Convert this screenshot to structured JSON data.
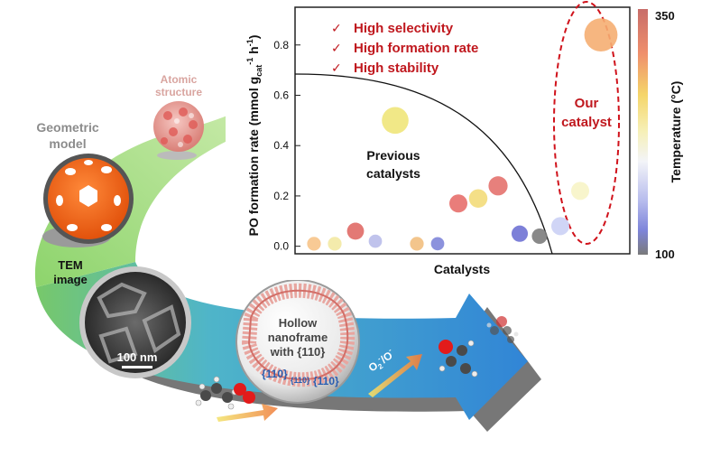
{
  "labels": {
    "atomic": [
      "Atomic",
      "structure"
    ],
    "geometric": [
      "Geometric",
      "model"
    ],
    "tem": [
      "TEM",
      "image"
    ],
    "scale": "100 nm",
    "hollow": [
      "Hollow",
      "nanoframe",
      "with {110}"
    ],
    "facet_a": "{110}",
    "facet_b": "{110}",
    "facet_c": "{110}",
    "oxygen": "O",
    "oxygen_sub": "2",
    "oxygen_sup": "-",
    "oxygen_sep": "/O",
    "oxygen_sup2": "-"
  },
  "chart_data": {
    "type": "scatter",
    "xlabel": "Catalysts",
    "ylabel": "PO formation rate (mmol g",
    "ylabel_sub": "cat",
    "ylabel_unit": " h",
    "ylabel_sup": "-1",
    "ylabel_sup_g": "-1",
    "ylabel_close": ")",
    "ylim": [
      -0.03,
      0.95
    ],
    "yticks": [
      "0.0",
      "0.2",
      "0.4",
      "0.6",
      "0.8"
    ],
    "ytick_values": [
      0.0,
      0.2,
      0.4,
      0.6,
      0.8
    ],
    "colorbar": {
      "label": "Temperature (°C)",
      "min_label": "350",
      "max_label": "100",
      "min": 100,
      "max": 350
    },
    "checklist": [
      "High selectivity",
      "High formation rate",
      "High stability"
    ],
    "annotations": {
      "previous": [
        "Previous",
        "catalysts"
      ],
      "ours": [
        "Our",
        "catalyst"
      ]
    },
    "points": [
      {
        "x": 1,
        "y": 0.01,
        "size": 0.3,
        "color": "#f7c489"
      },
      {
        "x": 2,
        "y": 0.01,
        "size": 0.3,
        "color": "#f3e9a3"
      },
      {
        "x": 3,
        "y": 0.06,
        "size": 0.45,
        "color": "#e06a66"
      },
      {
        "x": 4,
        "y": 0.02,
        "size": 0.28,
        "color": "#b9bdea"
      },
      {
        "x": 5,
        "y": 0.01,
        "size": 0.3,
        "color": "#f2bf80"
      },
      {
        "x": 6,
        "y": 0.01,
        "size": 0.28,
        "color": "#7f86d9"
      },
      {
        "x": 7,
        "y": 0.5,
        "size": 0.9,
        "color": "#f0e67a"
      },
      {
        "x": 8,
        "y": 0.17,
        "size": 0.5,
        "color": "#e76f6b"
      },
      {
        "x": 9,
        "y": 0.19,
        "size": 0.52,
        "color": "#f3dc7a"
      },
      {
        "x": 10,
        "y": 0.24,
        "size": 0.55,
        "color": "#e4726e"
      },
      {
        "x": 11,
        "y": 0.05,
        "size": 0.42,
        "color": "#6f72d4"
      },
      {
        "x": 12,
        "y": 0.04,
        "size": 0.38,
        "color": "#7c7c7c"
      },
      {
        "x": 13,
        "y": 0.08,
        "size": 0.5,
        "color": "#cbd0f5"
      },
      {
        "x": 14,
        "y": 0.22,
        "size": 0.5,
        "color": "#f7f4c6"
      },
      {
        "x": 15,
        "y": 0.84,
        "size": 1.2,
        "color": "#f5ae72"
      }
    ],
    "colors": {
      "check": "#c0181e",
      "oval": "#d0121b",
      "arrow_blue": "#3b8fd6",
      "green": "#7ccd4f"
    }
  }
}
